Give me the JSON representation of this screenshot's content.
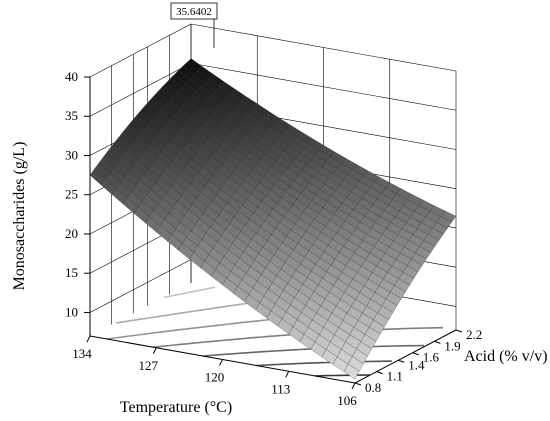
{
  "chart_data": {
    "type": "surface3d",
    "z_axis": {
      "label": "Monosaccharides (g/L)",
      "ticks": [
        10,
        15,
        20,
        25,
        30,
        35,
        40
      ],
      "range": [
        7,
        40
      ]
    },
    "x_axis": {
      "label": "Temperature (°C)",
      "ticks": [
        134,
        127,
        120,
        113,
        106
      ],
      "range": [
        106,
        134
      ]
    },
    "y_axis": {
      "label": "Acid (% v/v)",
      "ticks": [
        0.8,
        1.1,
        1.4,
        1.6,
        1.9,
        2.2
      ],
      "range": [
        0.8,
        2.2
      ]
    },
    "annotation": {
      "text": "35.6402",
      "temperature": 134,
      "acid": 2.2,
      "value": 35.6402
    },
    "surface": {
      "description_points": [
        {
          "temperature": 134,
          "acid": 0.8,
          "value": 27.5
        },
        {
          "temperature": 134,
          "acid": 2.2,
          "value": 35.6
        },
        {
          "temperature": 106,
          "acid": 0.8,
          "value": 7.5
        },
        {
          "temperature": 106,
          "acid": 2.2,
          "value": 21.5
        }
      ]
    },
    "contour_on_floor": true,
    "grid": true
  }
}
